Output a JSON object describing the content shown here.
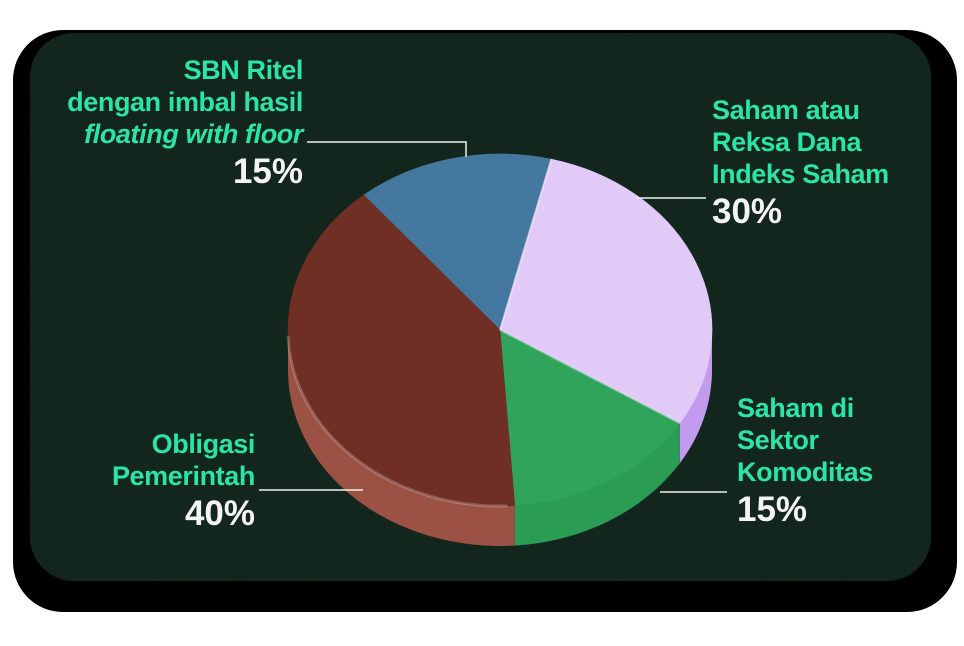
{
  "page": {
    "background_color": "#FFFFFF"
  },
  "card": {
    "background_color": "#0D2118",
    "frame_color": "#000000"
  },
  "text_colors": {
    "label_green": "#2BE4A7",
    "percent_white": "#F4F4F4"
  },
  "chart_data": {
    "type": "pie",
    "style": "3d-extruded",
    "direction": "clockwise",
    "start_angle_deg_from_north": -40,
    "total": 100,
    "slices": [
      {
        "id": "sbn-ritel",
        "label": "SBN Ritel dengan imbal hasil floating with floor",
        "value": 15,
        "color_top": "#44789F",
        "color_side": "#335E7E"
      },
      {
        "id": "reksa-dana-indeks-saham",
        "label": "Saham atau Reksa Dana Indeks Saham",
        "value": 30,
        "color_top": "#E1C9F8",
        "color_side": "#C29BEE"
      },
      {
        "id": "saham-sektor-komoditas",
        "label": "Saham di Sektor Komoditas",
        "value": 15,
        "color_top": "#2FA45A",
        "color_side": "#2A9C54"
      },
      {
        "id": "obligasi-pemerintah",
        "label": "Obligasi Pemerintah",
        "value": 40,
        "color_top": "#702F25",
        "color_side": "#9B5244"
      }
    ],
    "legend_position": "callout-labels",
    "grid": false
  },
  "labels": {
    "sbn": {
      "lines": [
        "SBN Ritel",
        "dengan imbal hasil",
        "floating with floor"
      ],
      "pct": "15%"
    },
    "reksa": {
      "lines": [
        "Saham atau",
        "Reksa Dana",
        "Indeks Saham"
      ],
      "pct": "30%"
    },
    "komoditas": {
      "lines": [
        "Saham di",
        "Sektor",
        "Komoditas"
      ],
      "pct": "15%"
    },
    "obligasi": {
      "lines": [
        "Obligasi",
        "Pemerintah"
      ],
      "pct": "40%"
    }
  },
  "connectors": {
    "color": "#EAF4EF"
  }
}
